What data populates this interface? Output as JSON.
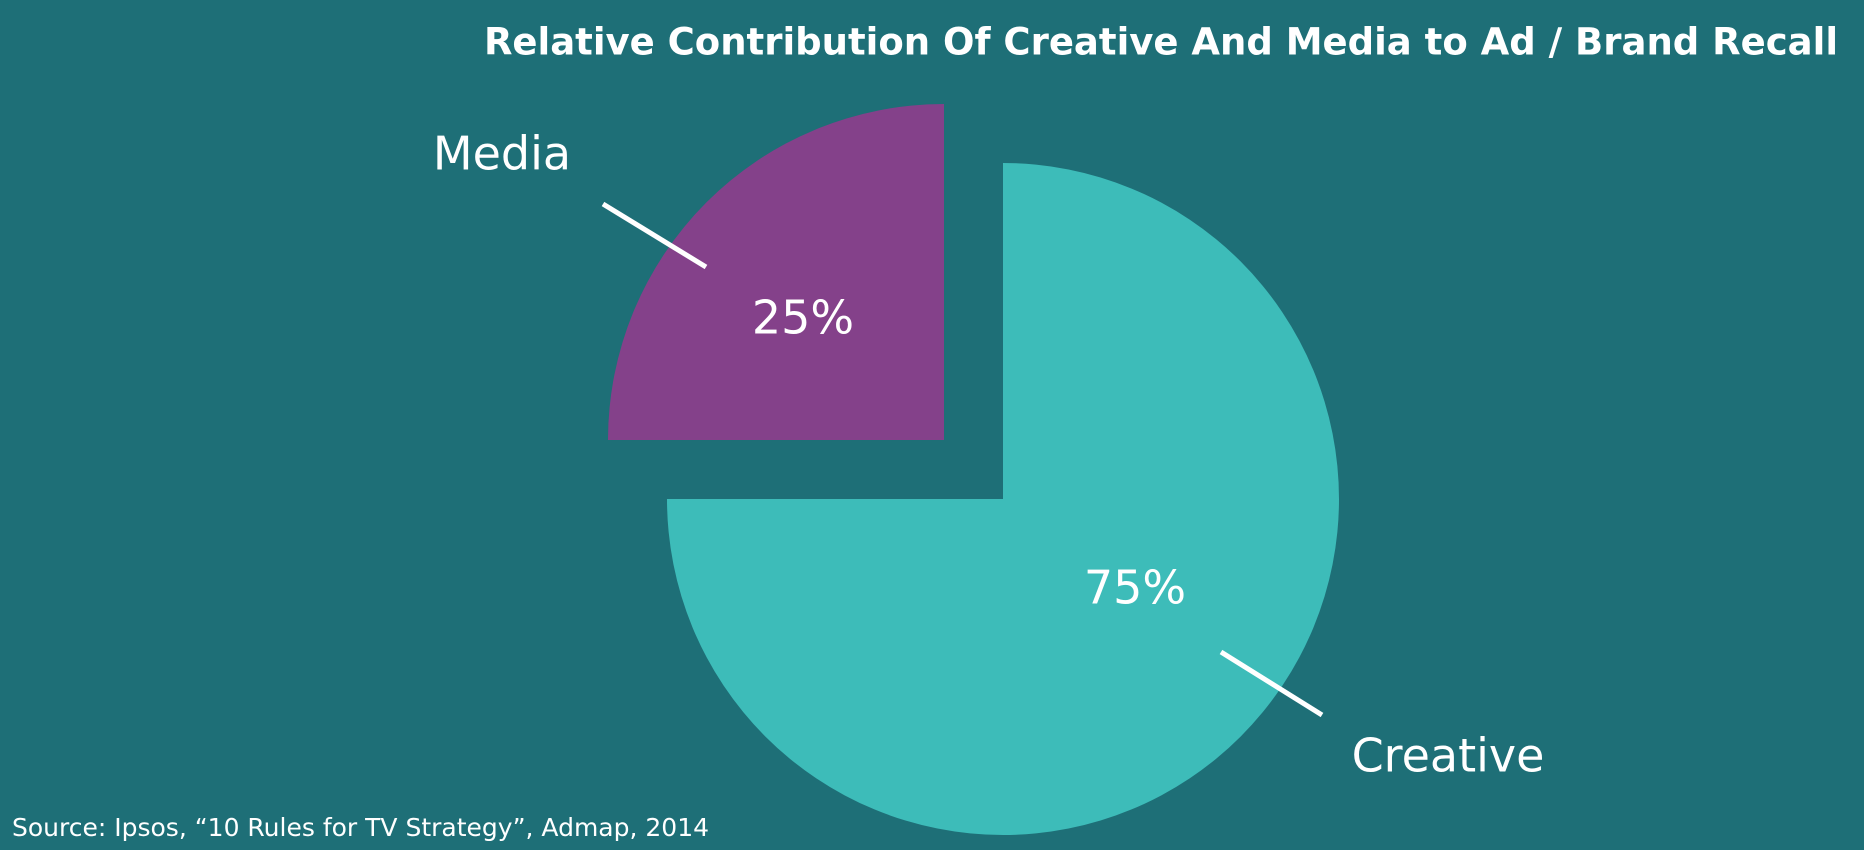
{
  "chart_data": {
    "type": "pie",
    "title": "Relative Contribution Of Creative And Media to Ad / Brand Recall",
    "categories": [
      "Creative",
      "Media"
    ],
    "values": [
      75,
      25
    ],
    "value_labels": [
      "75%",
      "25%"
    ],
    "colors": [
      "#3dbcb9",
      "#84418a"
    ],
    "source": "Source: Ipsos, “10 Rules for TV Strategy”, Admap, 2014"
  }
}
